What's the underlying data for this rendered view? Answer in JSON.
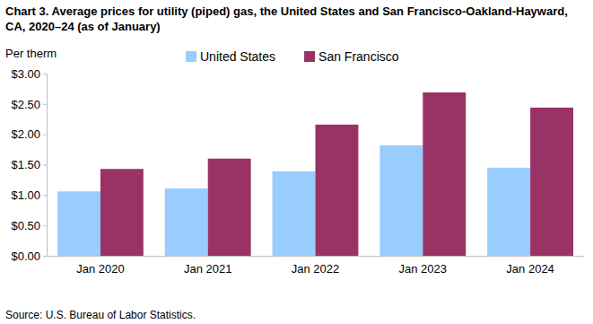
{
  "chart_data": {
    "type": "bar",
    "title": "Chart 3. Average prices for utility (piped) gas, the United States and San Francisco-Oakland-Hayward, CA, 2020–24 (as of January)",
    "y_label": "Per therm",
    "source": "Source: U.S. Bureau of Labor Statistics.",
    "categories": [
      "Jan 2020",
      "Jan 2021",
      "Jan 2022",
      "Jan 2023",
      "Jan 2024"
    ],
    "series": [
      {
        "name": "United States",
        "color": "#99ccff",
        "values": [
          1.06,
          1.11,
          1.39,
          1.82,
          1.45
        ]
      },
      {
        "name": "San Francisco",
        "color": "#993366",
        "values": [
          1.43,
          1.6,
          2.16,
          2.69,
          2.44
        ]
      }
    ],
    "ylim": [
      0,
      3
    ],
    "yticks": [
      {
        "value": 0,
        "label": "$0.00"
      },
      {
        "value": 0.5,
        "label": "$0.50"
      },
      {
        "value": 1,
        "label": "$1.00"
      },
      {
        "value": 1.5,
        "label": "$1.50"
      },
      {
        "value": 2,
        "label": "$2.00"
      },
      {
        "value": 2.5,
        "label": "$2.50"
      },
      {
        "value": 3,
        "label": "$3.00"
      }
    ],
    "grid": false,
    "legend": "top"
  }
}
